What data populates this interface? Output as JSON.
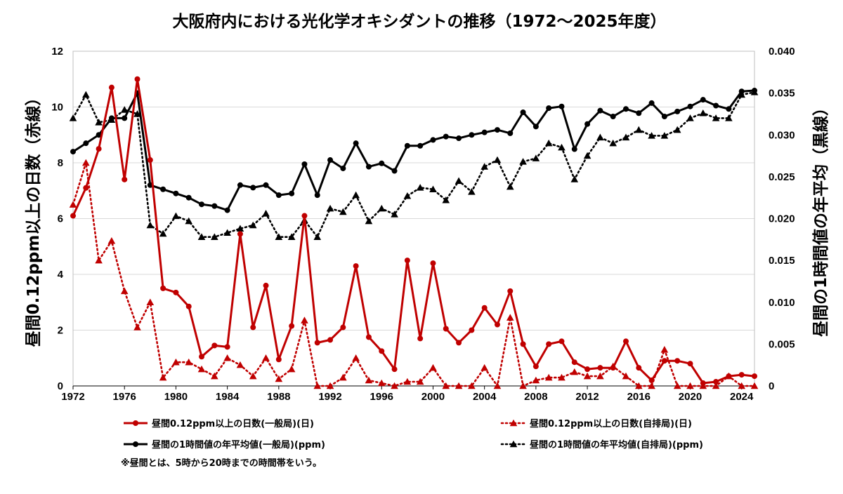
{
  "chart_data": {
    "type": "line",
    "title": "大阪府内における光化学オキシダントの推移（1972～2025年度）",
    "y_left_label": "昼間0.12ppm以上の日数（赤線）",
    "y_right_label": "昼間の1時間値の年平均（黒線）",
    "x_ticks": [
      "1972",
      "1976",
      "1980",
      "1984",
      "1988",
      "1992",
      "1996",
      "2000",
      "2004",
      "2008",
      "2012",
      "2016",
      "2020",
      "2024"
    ],
    "y_left_ticks": [
      "0",
      "2",
      "4",
      "6",
      "8",
      "10",
      "12"
    ],
    "y_right_ticks": [
      "0",
      "0.005",
      "0.010",
      "0.015",
      "0.020",
      "0.025",
      "0.030",
      "0.035",
      "0.040"
    ],
    "y_left_range": [
      0,
      12
    ],
    "y_right_range": [
      0,
      0.04
    ],
    "x_range": [
      1972,
      2025
    ],
    "grid": "horizontal",
    "legend_position": "bottom",
    "note": "※昼間とは、5時から20時までの時間帯をいう。",
    "x": [
      1972,
      1973,
      1974,
      1975,
      1976,
      1977,
      1978,
      1979,
      1980,
      1981,
      1982,
      1983,
      1984,
      1985,
      1986,
      1987,
      1988,
      1989,
      1990,
      1991,
      1992,
      1993,
      1994,
      1995,
      1996,
      1997,
      1998,
      1999,
      2000,
      2001,
      2002,
      2003,
      2004,
      2005,
      2006,
      2007,
      2008,
      2009,
      2010,
      2011,
      2012,
      2013,
      2014,
      2015,
      2016,
      2017,
      2018,
      2019,
      2020,
      2021,
      2022,
      2023,
      2024,
      2025
    ],
    "series": [
      {
        "name": "昼間0.12ppm以上の日数(一般局)(日)",
        "axis": "left",
        "color": "#c00000",
        "line": "solid",
        "marker": "circle",
        "values": [
          6.1,
          7.1,
          8.5,
          10.7,
          7.4,
          11.0,
          8.1,
          3.5,
          3.35,
          2.85,
          1.05,
          1.45,
          1.4,
          5.45,
          2.1,
          3.6,
          0.95,
          2.15,
          6.1,
          1.55,
          1.65,
          2.1,
          4.3,
          1.75,
          1.25,
          0.6,
          4.5,
          1.7,
          4.4,
          2.05,
          1.55,
          2.0,
          2.8,
          2.2,
          3.4,
          1.5,
          0.7,
          1.5,
          1.6,
          0.85,
          0.6,
          0.65,
          0.65,
          1.6,
          0.65,
          0.2,
          0.9,
          0.9,
          0.8,
          0.1,
          0.15,
          0.35,
          0.4,
          0.35
        ]
      },
      {
        "name": "昼間0.12ppm以上の日数(自排局)(日)",
        "axis": "left",
        "color": "#c00000",
        "line": "dotted",
        "marker": "triangle",
        "values": [
          6.5,
          8.0,
          4.5,
          5.2,
          3.4,
          2.1,
          3.0,
          0.3,
          0.85,
          0.85,
          0.6,
          0.35,
          1.0,
          0.75,
          0.35,
          1.0,
          0.25,
          0.6,
          2.35,
          0.0,
          0.0,
          0.3,
          1.0,
          0.2,
          0.1,
          0.0,
          0.15,
          0.15,
          0.65,
          0.0,
          0.0,
          0.0,
          0.65,
          0.0,
          2.45,
          0.0,
          0.2,
          0.3,
          0.3,
          0.5,
          0.35,
          0.35,
          0.7,
          0.35,
          0.0,
          0.0,
          1.3,
          0.0,
          0.0,
          0.0,
          0.0,
          0.35,
          0.0,
          0.0
        ]
      },
      {
        "name": "昼間の1時間値の年平均値(一般局)(ppm)",
        "axis": "right",
        "color": "#000000",
        "line": "solid",
        "marker": "circle",
        "values": [
          0.028,
          0.029,
          0.03,
          0.032,
          0.032,
          0.035,
          0.024,
          0.0235,
          0.023,
          0.0225,
          0.0217,
          0.0215,
          0.021,
          0.024,
          0.0237,
          0.024,
          0.0228,
          0.023,
          0.0265,
          0.0228,
          0.027,
          0.026,
          0.029,
          0.0262,
          0.0266,
          0.0257,
          0.0287,
          0.0287,
          0.0294,
          0.0298,
          0.0296,
          0.03,
          0.0303,
          0.0306,
          0.0302,
          0.0327,
          0.031,
          0.0332,
          0.0334,
          0.0283,
          0.0313,
          0.0329,
          0.0322,
          0.0331,
          0.0326,
          0.0338,
          0.0322,
          0.0328,
          0.0334,
          0.0342,
          0.0335,
          0.0331,
          0.0352,
          0.0353
        ]
      },
      {
        "name": "昼間の1時間値の年平均値(自排局)(ppm)",
        "axis": "right",
        "color": "#000000",
        "line": "dotted",
        "marker": "triangle",
        "values": [
          0.032,
          0.0348,
          0.0315,
          0.0318,
          0.033,
          0.0325,
          0.0192,
          0.0182,
          0.0203,
          0.0197,
          0.0178,
          0.0178,
          0.0183,
          0.0188,
          0.0192,
          0.0206,
          0.0178,
          0.0178,
          0.0198,
          0.0178,
          0.0212,
          0.0208,
          0.0228,
          0.0197,
          0.0212,
          0.0205,
          0.0227,
          0.0237,
          0.0235,
          0.0222,
          0.0245,
          0.0232,
          0.0262,
          0.027,
          0.0238,
          0.0268,
          0.0272,
          0.029,
          0.0285,
          0.0247,
          0.0275,
          0.0297,
          0.029,
          0.0297,
          0.0306,
          0.0299,
          0.0299,
          0.0306,
          0.032,
          0.0326,
          0.032,
          0.032,
          0.0348,
          0.0351
        ]
      }
    ]
  }
}
